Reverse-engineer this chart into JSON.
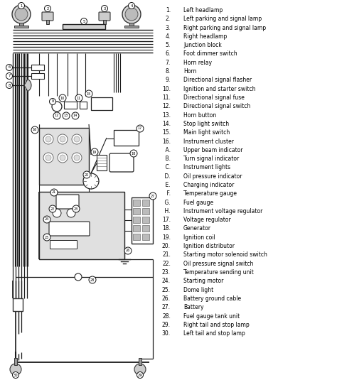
{
  "background_color": "#ffffff",
  "legend_items": [
    [
      "1.",
      "Left headlamp"
    ],
    [
      "2.",
      "Left parking and signal lamp"
    ],
    [
      "3.",
      "Right parking and signal lamp"
    ],
    [
      "4.",
      "Right headlamp"
    ],
    [
      "5.",
      "Junction block"
    ],
    [
      "6.",
      "Foot dimmer switch"
    ],
    [
      "7.",
      "Horn relay"
    ],
    [
      "8.",
      "Horn"
    ],
    [
      "9.",
      "Directional signal flasher"
    ],
    [
      "10.",
      "Ignition and starter switch"
    ],
    [
      "11.",
      "Directional signal fuse"
    ],
    [
      "12.",
      "Directional signal switch"
    ],
    [
      "13.",
      "Horn button"
    ],
    [
      "14.",
      "Stop light switch"
    ],
    [
      "15.",
      "Main light switch"
    ],
    [
      "16.",
      "Instrument cluster"
    ],
    [
      "    A.",
      "Upper beam indicator"
    ],
    [
      "    B.",
      "Turn signal indicator"
    ],
    [
      "    C.",
      "Instrument lights"
    ],
    [
      "    D.",
      "Oil pressure indicator"
    ],
    [
      "    E.",
      "Charging indicator"
    ],
    [
      "    F.",
      "Temperature gauge"
    ],
    [
      "    G.",
      "Fuel gauge"
    ],
    [
      "    H.",
      "Instrument voltage regulator"
    ],
    [
      "17.",
      "Voltage regulator"
    ],
    [
      "18.",
      "Generator"
    ],
    [
      "19.",
      "Ignition coil"
    ],
    [
      "20.",
      "Ignition distributor"
    ],
    [
      "21.",
      "Starting motor solenoid switch"
    ],
    [
      "22.",
      "Oil pressure signal switch"
    ],
    [
      "23.",
      "Temperature sending unit"
    ],
    [
      "24.",
      "Starting motor"
    ],
    [
      "25.",
      "Dome light"
    ],
    [
      "26.",
      "Battery ground cable"
    ],
    [
      "27.",
      "Battery"
    ],
    [
      "28.",
      "Fuel gauge tank unit"
    ],
    [
      "29.",
      "Right tail and stop lamp"
    ],
    [
      "30.",
      "Left tail and stop lamp"
    ]
  ],
  "fig_width": 4.74,
  "fig_height": 5.35,
  "dpi": 100,
  "wire_color": "#1a1a1a",
  "label_color": "#111111",
  "num_color": "#000000"
}
